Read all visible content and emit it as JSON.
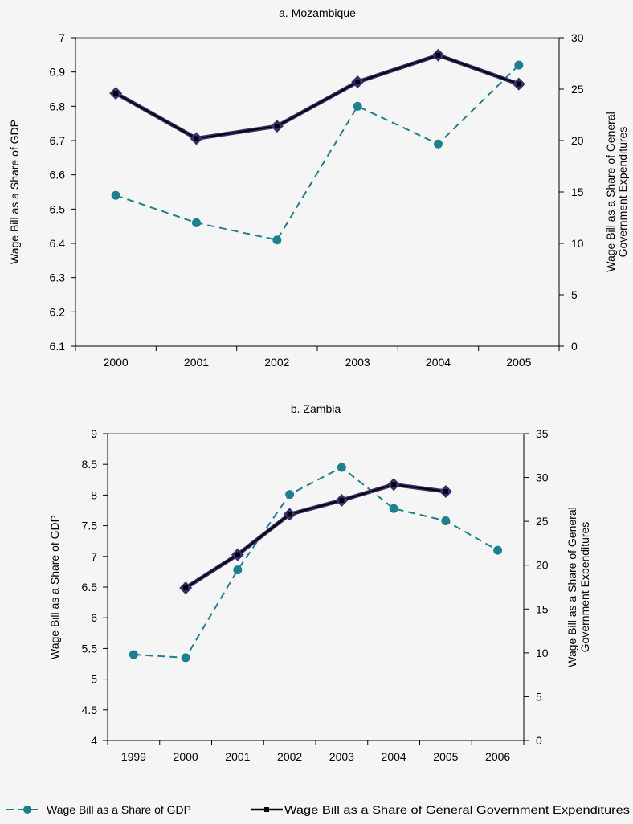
{
  "legend": {
    "gdp": "Wage Bill as a Share of GDP",
    "gge": "Wage Bill as a Share of General Government Expenditures"
  },
  "colors": {
    "gdp_series": "#1e7f8f",
    "gge_line": "#000000",
    "gge_marker": "#3a2f6e",
    "axis": "#000000",
    "frame": "#8a8a8a",
    "background": "#f4f5f4"
  },
  "chart_data": [
    {
      "type": "line",
      "title": "a. Mozambique",
      "x": [
        "2000",
        "2001",
        "2002",
        "2003",
        "2004",
        "2005"
      ],
      "ylabel_left": "Wage Bill as a Share of GDP",
      "ylabel_right": [
        "Wage Bill as a Share of General",
        "Government Expenditures"
      ],
      "ylim_left": [
        6.1,
        7
      ],
      "ylim_right": [
        0,
        30
      ],
      "yticks_left": [
        "6.1",
        "6.2",
        "6.3",
        "6.4",
        "6.5",
        "6.6",
        "6.7",
        "6.8",
        "6.9",
        "7"
      ],
      "yticks_right": [
        "0",
        "5",
        "10",
        "15",
        "20",
        "25",
        "30"
      ],
      "series": [
        {
          "name": "Wage Bill as a Share of GDP",
          "axis": "left",
          "style": "dashed-circle",
          "values": [
            6.54,
            6.46,
            6.41,
            6.8,
            6.69,
            6.92
          ]
        },
        {
          "name": "Wage Bill as a Share of General Government Expenditures",
          "axis": "right",
          "style": "solid-diamond",
          "values": [
            24.6,
            20.2,
            21.4,
            25.7,
            28.3,
            25.5
          ]
        }
      ]
    },
    {
      "type": "line",
      "title": "b. Zambia",
      "x": [
        "1999",
        "2000",
        "2001",
        "2002",
        "2003",
        "2004",
        "2005",
        "2006"
      ],
      "ylabel_left": "Wage Bill as a Share of GDP",
      "ylabel_right": [
        "Wage Bill as a Share of General",
        "Government Expenditures"
      ],
      "ylim_left": [
        4,
        9
      ],
      "ylim_right": [
        0,
        35
      ],
      "yticks_left": [
        "4",
        "4.5",
        "5",
        "5.5",
        "6",
        "6.5",
        "7",
        "7.5",
        "8",
        "8.5",
        "9"
      ],
      "yticks_right": [
        "0",
        "5",
        "10",
        "15",
        "20",
        "25",
        "30",
        "35"
      ],
      "series": [
        {
          "name": "Wage Bill as a Share of GDP",
          "axis": "left",
          "style": "dashed-circle",
          "values": [
            5.4,
            5.35,
            6.78,
            8.01,
            8.45,
            7.78,
            7.58,
            7.1
          ]
        },
        {
          "name": "Wage Bill as a Share of General Government Expenditures",
          "axis": "right",
          "style": "solid-diamond",
          "values": [
            null,
            17.4,
            21.2,
            25.8,
            27.4,
            29.2,
            28.4,
            null
          ]
        }
      ]
    }
  ]
}
